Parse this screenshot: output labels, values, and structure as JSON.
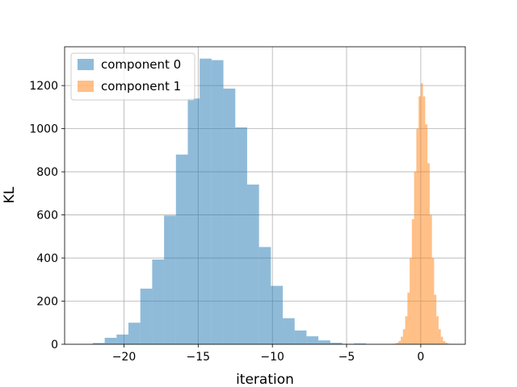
{
  "chart_data": {
    "type": "histogram",
    "xlabel": "iteration",
    "ylabel": "KL",
    "xlim": [
      -24,
      3
    ],
    "ylim": [
      0,
      1380
    ],
    "xticks": [
      -20,
      -15,
      -10,
      -5,
      0
    ],
    "yticks": [
      0,
      200,
      400,
      600,
      800,
      1000,
      1200
    ],
    "grid": true,
    "legend_position": "upper-left",
    "series": [
      {
        "name": "component 0",
        "color": "#1f77b4",
        "alpha": 0.5,
        "bin_edges": [
          -22.1,
          -21.3,
          -20.5,
          -19.7,
          -18.9,
          -18.1,
          -17.3,
          -16.5,
          -15.7,
          -14.9,
          -14.1,
          -13.3,
          -12.5,
          -11.7,
          -10.9,
          -10.1,
          -9.3,
          -8.5,
          -7.7,
          -6.9,
          -6.1,
          -5.3,
          -4.5,
          -3.7
        ],
        "counts": [
          6,
          30,
          45,
          100,
          258,
          393,
          597,
          880,
          1140,
          1325,
          1318,
          1186,
          1006,
          741,
          451,
          271,
          121,
          64,
          37,
          18,
          7,
          2,
          4
        ]
      },
      {
        "name": "component 1",
        "color": "#ff7f0e",
        "alpha": 0.5,
        "bin_edges": [
          -1.95,
          -1.8,
          -1.65,
          -1.5,
          -1.35,
          -1.2,
          -1.05,
          -0.9,
          -0.75,
          -0.6,
          -0.45,
          -0.3,
          -0.15,
          0.0,
          0.15,
          0.3,
          0.45,
          0.6,
          0.75,
          0.9,
          1.05,
          1.2,
          1.35,
          1.5,
          1.65,
          1.8,
          1.95,
          2.1
        ],
        "counts": [
          1,
          3,
          7,
          15,
          35,
          70,
          130,
          240,
          400,
          580,
          800,
          1000,
          1150,
          1210,
          1150,
          1020,
          840,
          600,
          400,
          230,
          130,
          70,
          35,
          15,
          7,
          3,
          1
        ]
      }
    ]
  }
}
